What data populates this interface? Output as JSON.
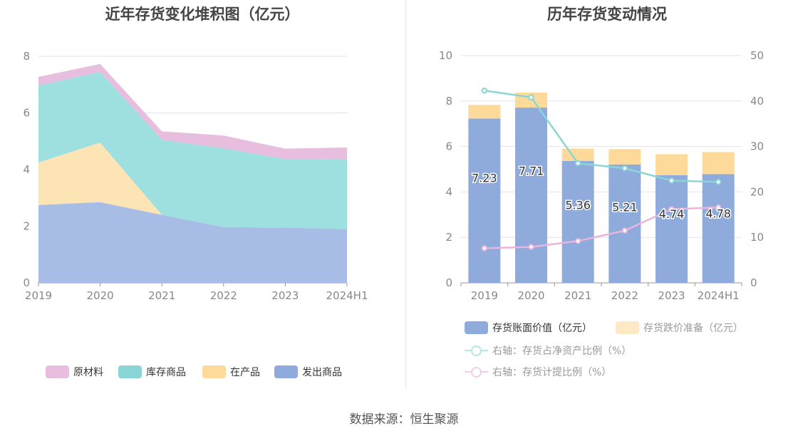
{
  "source_note": "数据来源：恒生聚源",
  "colors": {
    "raw_material": "#e8bedf",
    "inventory_goods": "#9ee0e0",
    "in_process": "#fde4b5",
    "shipped_goods": "#a8bde6",
    "book_value": "#8eabdb",
    "impairment": "#fdd99a",
    "net_asset_ratio_line": "#8ad5d5",
    "provision_ratio_line": "#eab5dd",
    "grid": "#e0e3ef",
    "axis_text": "#888888"
  },
  "chart_data": [
    {
      "type": "area",
      "stacked": true,
      "title": "近年存货变化堆积图（亿元）",
      "categories": [
        "2019",
        "2020",
        "2021",
        "2022",
        "2023",
        "2024H1"
      ],
      "yticks": [
        "0",
        "2",
        "4",
        "6",
        "8"
      ],
      "ylim": [
        0,
        8
      ],
      "grid": true,
      "legend_position": "bottom",
      "series": [
        {
          "name": "发出商品",
          "values": [
            2.75,
            2.85,
            2.4,
            1.97,
            1.95,
            1.9
          ]
        },
        {
          "name": "在产品",
          "values": [
            1.5,
            2.1,
            0,
            0,
            0,
            0
          ]
        },
        {
          "name": "库存商品",
          "values": [
            2.72,
            2.5,
            2.65,
            2.78,
            2.42,
            2.45
          ]
        },
        {
          "name": "原材料",
          "values": [
            0.3,
            0.28,
            0.3,
            0.45,
            0.37,
            0.43
          ]
        }
      ],
      "legend": [
        "原材料",
        "库存商品",
        "在产品",
        "发出商品"
      ]
    },
    {
      "type": "bar",
      "stacked": true,
      "title": "历年存货变动情况",
      "categories": [
        "2019",
        "2020",
        "2021",
        "2022",
        "2023",
        "2024H1"
      ],
      "yticks_left": [
        "0",
        "2",
        "4",
        "6",
        "8",
        "10"
      ],
      "ylim_left": [
        0,
        10
      ],
      "yticks_right": [
        "0",
        "10",
        "20",
        "30",
        "40",
        "50"
      ],
      "ylim_right": [
        0,
        50
      ],
      "grid": true,
      "legend_position": "bottom",
      "series": [
        {
          "name": "存货账面价值（亿元）",
          "values": [
            7.23,
            7.71,
            5.36,
            5.21,
            4.74,
            4.78
          ],
          "labels": [
            "7.23",
            "7.71",
            "5.36",
            "5.21",
            "4.74",
            "4.78"
          ]
        },
        {
          "name": "存货跌价准备（亿元）",
          "values": [
            0.6,
            0.66,
            0.55,
            0.67,
            0.92,
            0.97
          ]
        }
      ],
      "lines": [
        {
          "name": "右轴：存货占净资产比例（%）",
          "axis": "right",
          "values": [
            42.3,
            40.8,
            26.3,
            25.2,
            22.5,
            22.2
          ]
        },
        {
          "name": "右轴：存货计提比例（%）",
          "axis": "right",
          "values": [
            7.6,
            7.9,
            9.2,
            11.5,
            16.2,
            16.6
          ]
        }
      ]
    }
  ]
}
